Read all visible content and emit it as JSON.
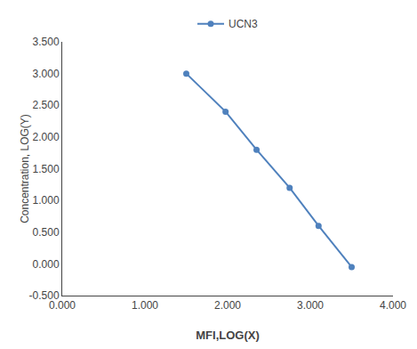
{
  "chart_data": {
    "type": "line",
    "xlabel": "MFI,LOG(X)",
    "ylabel": "Concentration, LOG(Y)",
    "x": [
      1.5,
      1.975,
      2.35,
      2.75,
      3.1,
      3.5
    ],
    "series": [
      {
        "name": "UCN3",
        "color": "#4f81bd",
        "marker": "circle",
        "values": [
          3.0,
          2.4,
          1.8,
          1.2,
          0.6,
          -0.05
        ]
      }
    ],
    "xlim": [
      0.0,
      4.0
    ],
    "ylim": [
      -0.5,
      3.5
    ],
    "xticks": [
      {
        "value": 0.0,
        "label": "0.000"
      },
      {
        "value": 1.0,
        "label": "1.000"
      },
      {
        "value": 2.0,
        "label": "2.000"
      },
      {
        "value": 3.0,
        "label": "3.000"
      },
      {
        "value": 4.0,
        "label": "4.000"
      }
    ],
    "yticks": [
      {
        "value": -0.5,
        "label": "-0.500"
      },
      {
        "value": 0.0,
        "label": "0.000"
      },
      {
        "value": 0.5,
        "label": "0.500"
      },
      {
        "value": 1.0,
        "label": "1.000"
      },
      {
        "value": 1.5,
        "label": "1.500"
      },
      {
        "value": 2.0,
        "label": "2.000"
      },
      {
        "value": 2.5,
        "label": "2.500"
      },
      {
        "value": 3.0,
        "label": "3.000"
      },
      {
        "value": 3.5,
        "label": "3.500"
      }
    ],
    "grid": false,
    "legend": "top"
  }
}
